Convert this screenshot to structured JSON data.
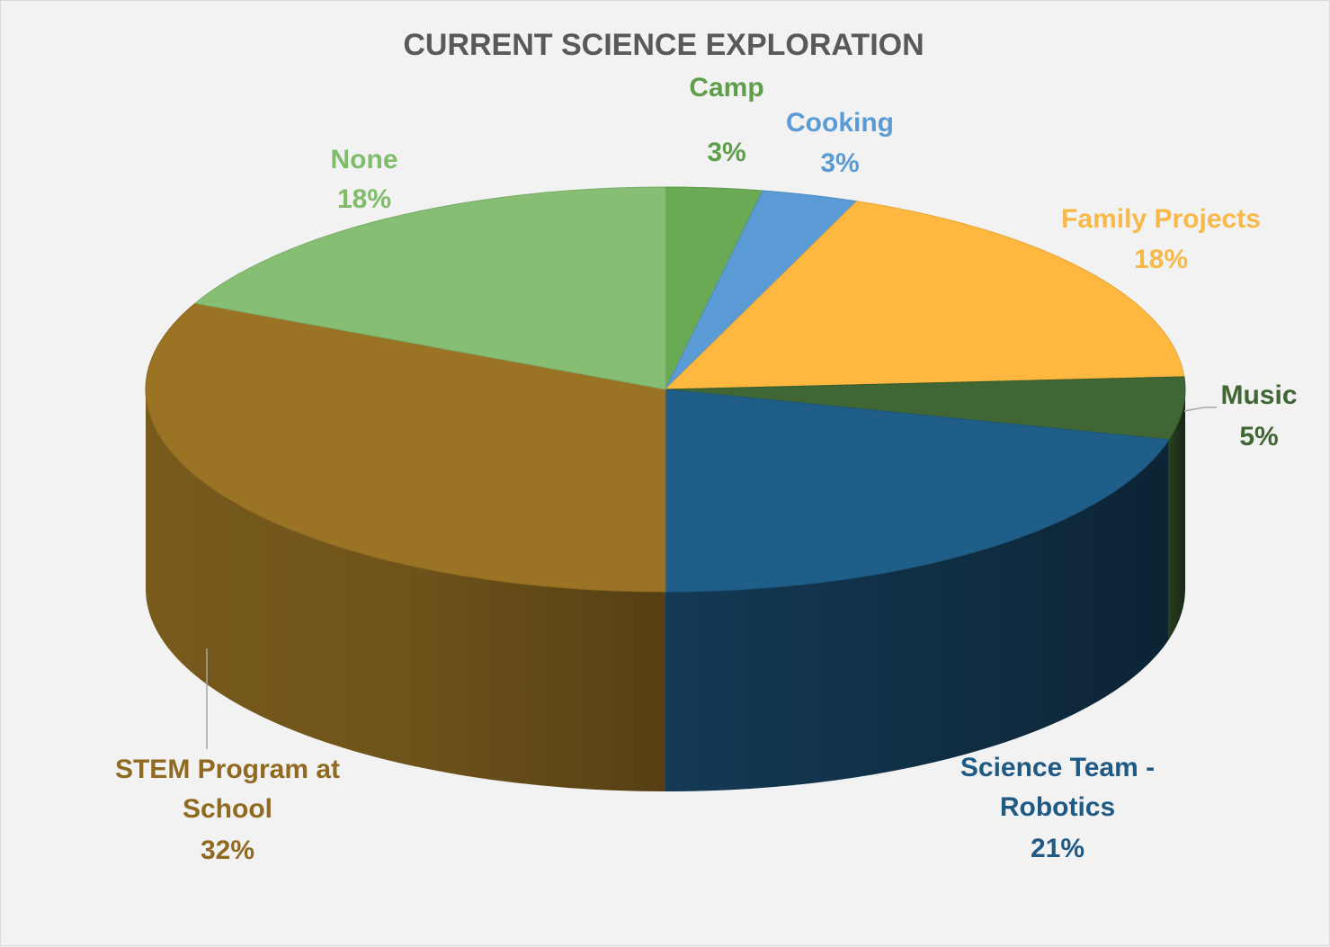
{
  "chart_data": {
    "type": "pie",
    "style": "3d",
    "title": "CURRENT SCIENCE EXPLORATION",
    "slices": [
      {
        "label": "Camp",
        "percent_label": "3%",
        "value": 3,
        "color": "#6aaa55",
        "label_color": "#5f9e4b"
      },
      {
        "label": "Cooking",
        "percent_label": "3%",
        "value": 3,
        "color": "#5b9bd5",
        "label_color": "#5b9bd5"
      },
      {
        "label": "Family Projects",
        "percent_label": "18%",
        "value": 18,
        "color": "#ffb83f",
        "label_color": "#f6b94a"
      },
      {
        "label": "Music",
        "percent_label": "5%",
        "value": 5,
        "color": "#3f6633",
        "label_color": "#3f6633"
      },
      {
        "label": "Science Team - Robotics",
        "label_lines": [
          "Science Team -",
          "Robotics"
        ],
        "percent_label": "21%",
        "value": 21,
        "color": "#205e8a",
        "label_color": "#1f5a85"
      },
      {
        "label": "STEM Program at School",
        "label_lines": [
          "STEM Program at",
          "School"
        ],
        "percent_label": "32%",
        "value": 32,
        "color": "#9a7324",
        "label_color": "#8f6a20"
      },
      {
        "label": "None",
        "percent_label": "18%",
        "value": 18,
        "color": "#86bf73",
        "label_color": "#7fbd6b"
      }
    ]
  }
}
